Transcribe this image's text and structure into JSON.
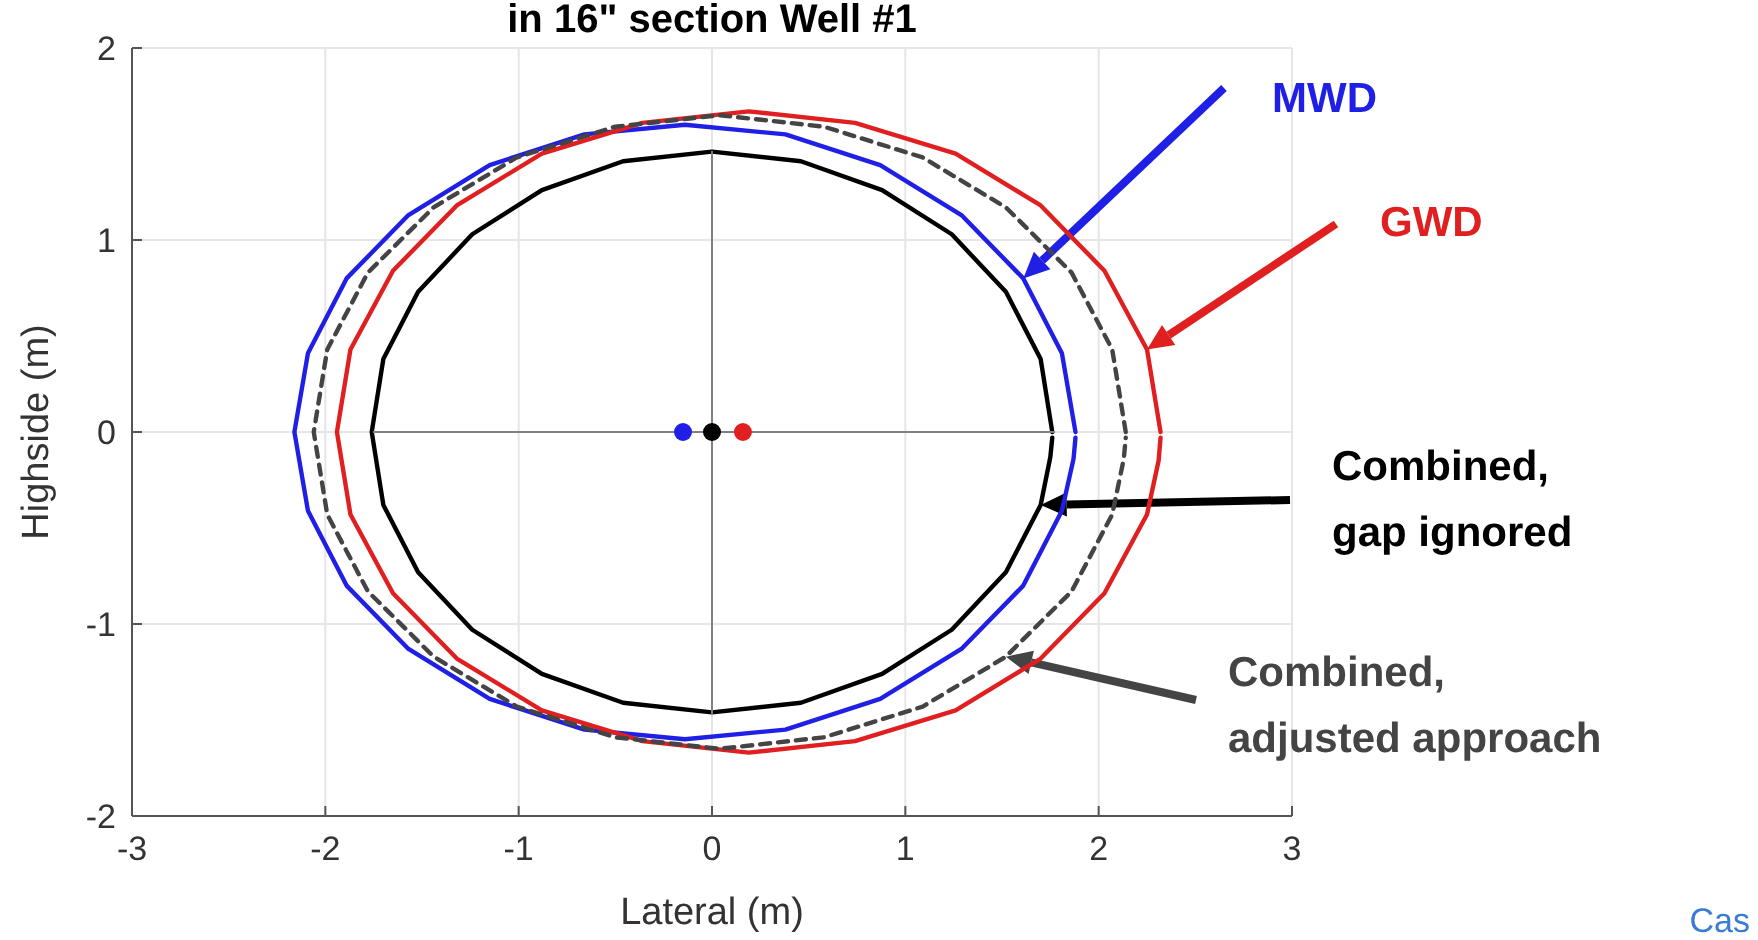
{
  "chart_data": {
    "type": "line",
    "title": "in 16\" section Well #1",
    "xlabel": "Lateral (m)",
    "ylabel": "Highside (m)",
    "xlim": [
      -3,
      3
    ],
    "xticks": [
      -3,
      -2,
      -1,
      0,
      1,
      2,
      3
    ],
    "ylim": [
      -2,
      2
    ],
    "yticks": [
      -2,
      -1,
      0,
      1,
      2
    ],
    "grid": true,
    "legend": "right",
    "marker": "none",
    "series": [
      {
        "name": "MWD",
        "color": "#1f1fe6",
        "x": [
          1.88,
          1.81,
          1.61,
          1.29,
          0.87,
          0.38,
          -0.14,
          -0.66,
          -1.15,
          -1.57,
          -1.89,
          -2.09,
          -2.16,
          -2.09,
          -1.89,
          -1.57,
          -1.15,
          -0.66,
          -0.14,
          0.38,
          0.87,
          1.29,
          1.61,
          1.81,
          1.87,
          1.88
        ],
        "values": [
          0,
          0.41,
          0.8,
          1.13,
          1.39,
          1.55,
          1.6,
          1.55,
          1.39,
          1.13,
          0.8,
          0.41,
          0,
          -0.41,
          -0.8,
          -1.13,
          -1.39,
          -1.55,
          -1.6,
          -1.55,
          -1.39,
          -1.13,
          -0.8,
          -0.41,
          -0.14,
          -0.03
        ]
      },
      {
        "name": "GWD",
        "color": "#e02020",
        "x": [
          2.32,
          2.25,
          2.03,
          1.7,
          1.26,
          0.74,
          0.19,
          -0.36,
          -0.88,
          -1.32,
          -1.65,
          -1.87,
          -1.94,
          -1.87,
          -1.65,
          -1.32,
          -0.88,
          -0.36,
          0.19,
          0.74,
          1.26,
          1.7,
          2.03,
          2.25,
          2.31,
          2.32
        ],
        "values": [
          0,
          0.43,
          0.84,
          1.18,
          1.45,
          1.61,
          1.67,
          1.61,
          1.45,
          1.18,
          0.84,
          0.43,
          0,
          -0.43,
          -0.84,
          -1.18,
          -1.45,
          -1.61,
          -1.67,
          -1.61,
          -1.45,
          -1.18,
          -0.84,
          -0.43,
          -0.15,
          -0.03
        ]
      },
      {
        "name": "Combined, gap ignored",
        "color": "#000000",
        "x": [
          1.76,
          1.7,
          1.52,
          1.24,
          0.88,
          0.46,
          0,
          -0.46,
          -0.88,
          -1.24,
          -1.52,
          -1.7,
          -1.76,
          -1.7,
          -1.52,
          -1.24,
          -0.88,
          -0.46,
          0,
          0.46,
          0.88,
          1.24,
          1.52,
          1.7,
          1.75,
          1.76
        ],
        "values": [
          0,
          0.38,
          0.73,
          1.03,
          1.26,
          1.41,
          1.46,
          1.41,
          1.26,
          1.03,
          0.73,
          0.38,
          0,
          -0.38,
          -0.73,
          -1.03,
          -1.26,
          -1.41,
          -1.46,
          -1.41,
          -1.26,
          -1.03,
          -0.73,
          -0.38,
          -0.13,
          -0.03
        ]
      },
      {
        "name": "Combined, adjusted approach",
        "color": "#444444",
        "line_style": "dashed",
        "x": [
          2.14,
          2.07,
          1.86,
          1.52,
          1.09,
          0.58,
          0.04,
          -0.5,
          -1.01,
          -1.44,
          -1.78,
          -1.99,
          -2.06,
          -1.99,
          -1.78,
          -1.44,
          -1.01,
          -0.5,
          0.04,
          0.58,
          1.09,
          1.52,
          1.86,
          2.07,
          2.13,
          2.14
        ],
        "values": [
          0,
          0.43,
          0.83,
          1.17,
          1.43,
          1.59,
          1.65,
          1.59,
          1.43,
          1.17,
          0.83,
          0.43,
          0,
          -0.43,
          -0.83,
          -1.17,
          -1.43,
          -1.59,
          -1.65,
          -1.59,
          -1.43,
          -1.17,
          -0.83,
          -0.43,
          -0.14,
          -0.03
        ]
      },
      {
        "color": "#808080",
        "x": [
          -1.75,
          1.77
        ],
        "values": [
          0,
          0
        ]
      },
      {
        "color": "#808080",
        "x": [
          0,
          0
        ],
        "values": [
          1.46,
          -1.47
        ]
      },
      {
        "type": "scatter",
        "marker": "circle",
        "color": "#1f1fe6",
        "x": [
          -0.15
        ],
        "values": [
          0
        ]
      },
      {
        "type": "scatter",
        "marker": "circle",
        "color": "#000000",
        "x": [
          0
        ],
        "values": [
          0
        ]
      },
      {
        "type": "scatter",
        "marker": "circle",
        "color": "#e02020",
        "x": [
          0.16
        ],
        "values": [
          0
        ]
      }
    ],
    "annotations": [
      "Cas"
    ]
  }
}
